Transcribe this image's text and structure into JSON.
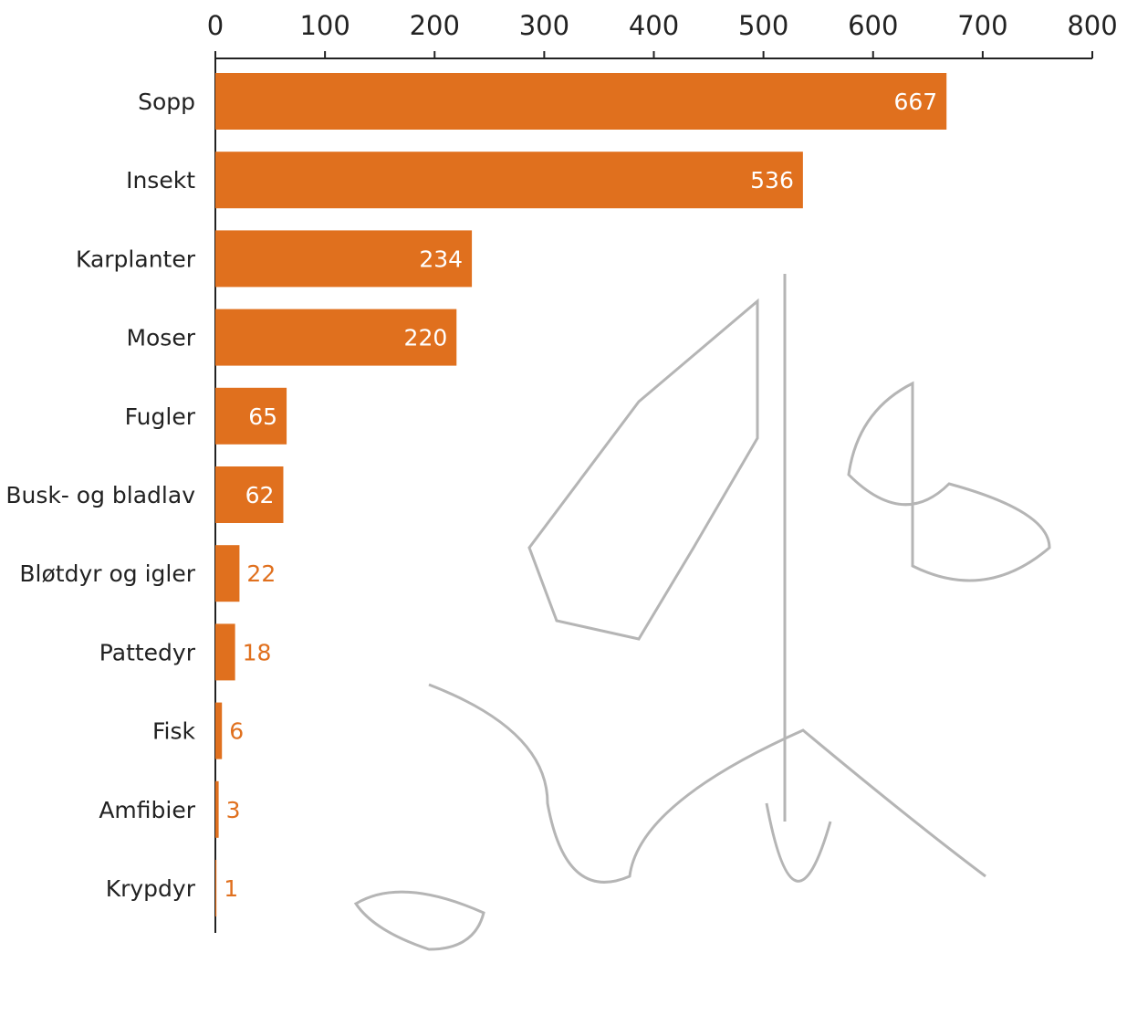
{
  "chart_data": {
    "type": "bar",
    "orientation": "horizontal",
    "categories": [
      "Sopp",
      "Insekt",
      "Karplanter",
      "Moser",
      "Fugler",
      "Busk- og bladlav",
      "Bløtdyr og igler",
      "Pattedyr",
      "Fisk",
      "Amfibier",
      "Krypdyr"
    ],
    "values": [
      667,
      536,
      234,
      220,
      65,
      62,
      22,
      18,
      6,
      3,
      1
    ],
    "color": "#e0701e",
    "xlim": [
      0,
      800
    ],
    "xticks": [
      0,
      100,
      200,
      300,
      400,
      500,
      600,
      700,
      800
    ],
    "grid": false
  }
}
